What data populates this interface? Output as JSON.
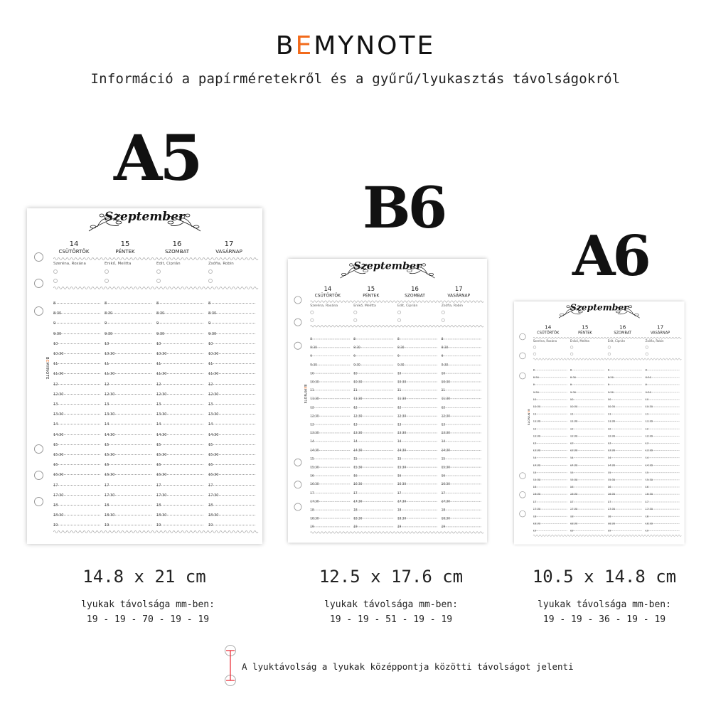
{
  "header": {
    "logo_prefix": "B",
    "logo_accent": "E",
    "logo_rest": "MYNOTE",
    "accent_color": "#f26a1b",
    "subtitle": "Információ a papírméretekről és a gyűrű/lyukasztás távolságokról"
  },
  "formats": [
    {
      "label": "A5",
      "size": "14.8 x 21 cm",
      "holes_label": "lyukak távolsága mm-ben:",
      "holes": "19 - 19 - 70 - 19 - 19"
    },
    {
      "label": "B6",
      "size": "12.5 x 17.6 cm",
      "holes_label": "lyukak távolsága mm-ben:",
      "holes": "19 - 19 - 51 - 19 - 19"
    },
    {
      "label": "A6",
      "size": "10.5 x 14.8 cm",
      "holes_label": "lyukak távolsága mm-ben:",
      "holes": "19 - 19 - 36 - 19 - 19"
    }
  ],
  "planner": {
    "month": "Szeptember",
    "days": [
      {
        "number": "14",
        "name": "CSÜTÖRTÖK",
        "nameday": "Szeréna, Roxána"
      },
      {
        "number": "15",
        "name": "PÉNTEK",
        "nameday": "Enikő, Melitta"
      },
      {
        "number": "16",
        "name": "SZOMBAT",
        "nameday": "Edit, Ciprián"
      },
      {
        "number": "17",
        "name": "VASÁRNAP",
        "nameday": "Zsófia, Robin"
      }
    ],
    "times": [
      "8",
      "8:30",
      "9",
      "9:30",
      "10",
      "10:30",
      "11",
      "11:30",
      "12",
      "12:30",
      "13",
      "13:30",
      "14",
      "14:30",
      "15",
      "15:30",
      "16",
      "16:30",
      "17",
      "17:30",
      "18",
      "18:30",
      "19"
    ],
    "side_logo_prefix": "B",
    "side_logo_accent": "E",
    "side_logo_rest": "MYNOTE"
  },
  "legend": {
    "text": "A lyuktávolság a lyukak középpontja közötti távolságot jelenti",
    "line_color": "#e8202a"
  }
}
